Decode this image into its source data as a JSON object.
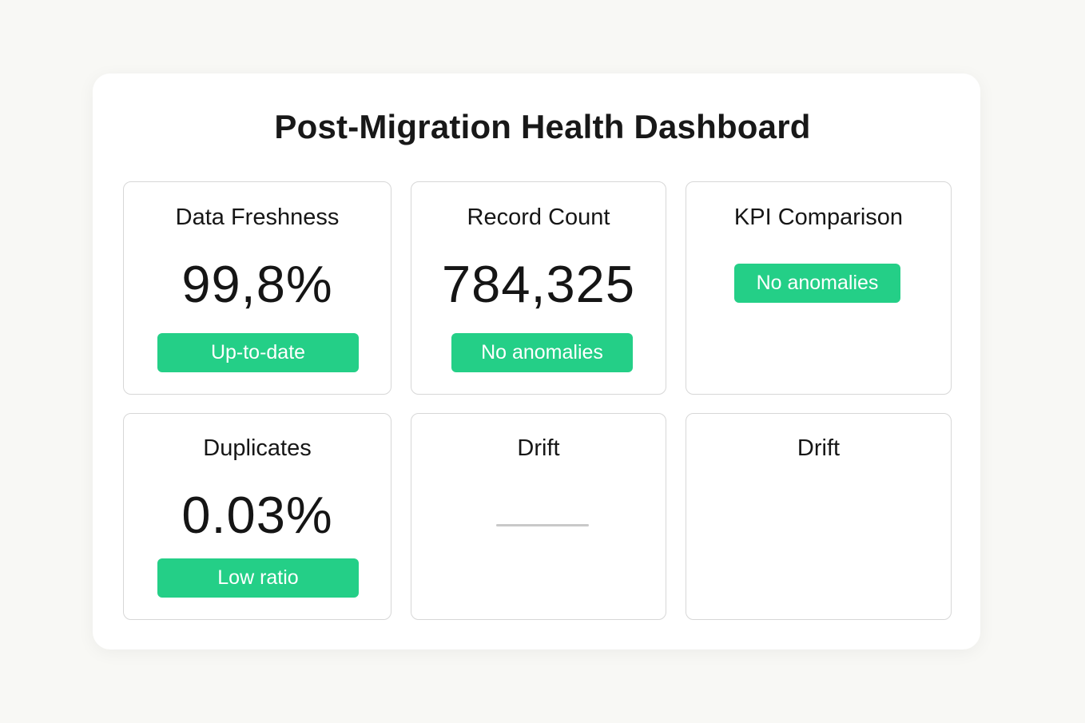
{
  "dashboard": {
    "title": "Post-Migration Health Dashboard",
    "cards": {
      "data_freshness": {
        "title": "Data Freshness",
        "value": "99,8%",
        "status": "Up-to-date"
      },
      "record_count": {
        "title": "Record Count",
        "value": "784,325",
        "status": "No anomalies"
      },
      "kpi_comparison": {
        "title": "KPI Comparison",
        "status": "No anomalies"
      },
      "duplicates": {
        "title": "Duplicates",
        "value": "0.03%",
        "status": "Low ratio"
      },
      "drift_1": {
        "title": "Drift"
      },
      "drift_2": {
        "title": "Drift"
      }
    }
  },
  "colors": {
    "background": "#f8f8f5",
    "card_background": "#ffffff",
    "tile_border": "#d7d7d7",
    "status_green": "#24cf87",
    "text_primary": "#161616",
    "drift_line": "#c9c9c9"
  }
}
